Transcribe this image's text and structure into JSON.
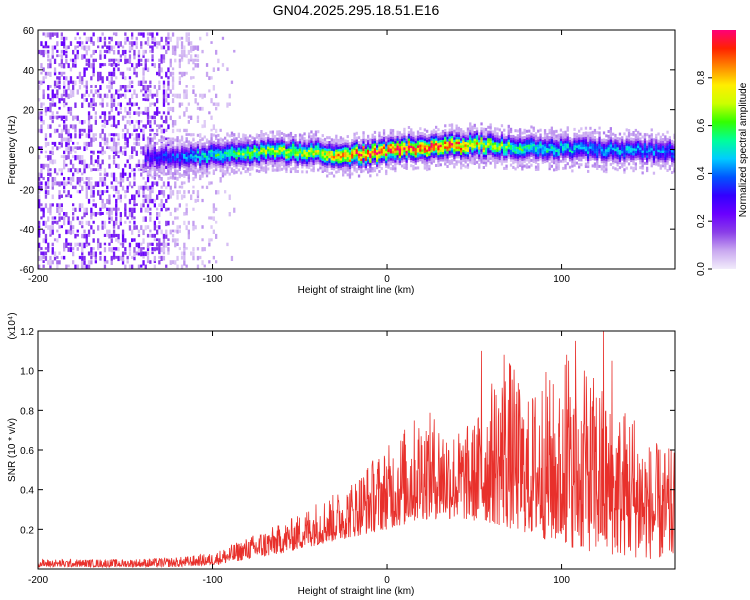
{
  "title": "GN04.2025.295.18.51.E16",
  "chart_data": [
    {
      "type": "heatmap",
      "name": "spectrogram",
      "xlabel": "Height of straight line (km)",
      "ylabel": "Frequency (Hz)",
      "xlim": [
        -200,
        165
      ],
      "ylim": [
        -60,
        60
      ],
      "xticks": [
        -200,
        -100,
        0,
        100
      ],
      "yticks": [
        60,
        40,
        20,
        0,
        -20,
        -40,
        -60
      ],
      "xtick_labels": [
        "-200",
        "-100",
        "0",
        "100"
      ],
      "ytick_labels": [
        "60",
        "40",
        "20",
        "0",
        "-20",
        "-40",
        "-60"
      ],
      "ridge": {
        "x": [
          -140,
          -120,
          -100,
          -80,
          -60,
          -40,
          -20,
          0,
          20,
          40,
          60,
          80,
          100,
          120,
          140,
          165
        ],
        "center_hz": [
          -3,
          -3,
          -2,
          -1,
          0,
          -1,
          -2,
          0,
          2,
          3,
          3,
          2,
          1,
          1,
          0,
          0
        ],
        "peak_amplitude": [
          0.3,
          0.4,
          0.55,
          0.65,
          0.7,
          0.7,
          0.9,
          0.97,
          0.95,
          0.9,
          0.7,
          0.55,
          0.5,
          0.45,
          0.45,
          0.4
        ]
      },
      "noise_region_x": [
        -200,
        -110
      ],
      "colorbar": {
        "label": "Normalized spectral amplitude",
        "range": [
          0,
          1
        ],
        "ticks": [
          0.0,
          0.2,
          0.4,
          0.6,
          0.8
        ],
        "tick_labels": [
          "0.0",
          "0.2",
          "0.4",
          "0.6",
          "0.8"
        ],
        "colors": [
          "#f2ecfb",
          "#c9a8f0",
          "#8a3ee8",
          "#6a00ff",
          "#3300ff",
          "#0055ff",
          "#00ccff",
          "#00ff99",
          "#33ff00",
          "#ccff00",
          "#ffee00",
          "#ff8800",
          "#ff2200",
          "#ff0077"
        ]
      }
    },
    {
      "type": "line",
      "name": "snr",
      "xlabel": "Height of straight line (km)",
      "ylabel": "SNR (10 * v/v)",
      "scale_label": "(x10⁴)",
      "xlim": [
        -200,
        165
      ],
      "ylim": [
        0,
        1.2
      ],
      "xticks": [
        -200,
        -100,
        0,
        100
      ],
      "xtick_labels": [
        "-200",
        "-100",
        "0",
        "100"
      ],
      "yticks": [
        0.2,
        0.4,
        0.6,
        0.8,
        1.0,
        1.2
      ],
      "ytick_labels": [
        "0.2",
        "0.4",
        "0.6",
        "0.8",
        "1.0",
        "1.2"
      ],
      "series": [
        {
          "name": "SNR",
          "color": "#e8302b",
          "envelope_x": [
            -200,
            -150,
            -120,
            -100,
            -90,
            -80,
            -70,
            -60,
            -50,
            -40,
            -30,
            -20,
            -10,
            0,
            10,
            20,
            30,
            40,
            50,
            60,
            70,
            80,
            90,
            100,
            110,
            120,
            130,
            140,
            150,
            165
          ],
          "envelope_max": [
            0.05,
            0.05,
            0.06,
            0.08,
            0.12,
            0.16,
            0.2,
            0.23,
            0.28,
            0.35,
            0.38,
            0.45,
            0.55,
            0.62,
            0.72,
            0.8,
            0.78,
            0.7,
            0.75,
            0.95,
            1.08,
            0.85,
            1.02,
            0.9,
            0.95,
            1.0,
            0.8,
            0.85,
            0.65,
            0.6
          ],
          "envelope_min": [
            0.01,
            0.01,
            0.01,
            0.02,
            0.03,
            0.05,
            0.06,
            0.08,
            0.1,
            0.12,
            0.14,
            0.16,
            0.18,
            0.2,
            0.22,
            0.25,
            0.25,
            0.25,
            0.24,
            0.23,
            0.2,
            0.18,
            0.15,
            0.12,
            0.1,
            0.08,
            0.07,
            0.06,
            0.05,
            0.05
          ],
          "spikes": [
            {
              "x": 54,
              "y": 1.1
            },
            {
              "x": 67,
              "y": 1.08
            },
            {
              "x": 102,
              "y": 1.03
            },
            {
              "x": 103,
              "y": 1.08
            },
            {
              "x": 104,
              "y": 1.05
            },
            {
              "x": 108,
              "y": 1.15
            },
            {
              "x": 113,
              "y": 1.0
            },
            {
              "x": 124,
              "y": 1.2
            },
            {
              "x": 129,
              "y": 1.05
            }
          ]
        }
      ]
    }
  ]
}
